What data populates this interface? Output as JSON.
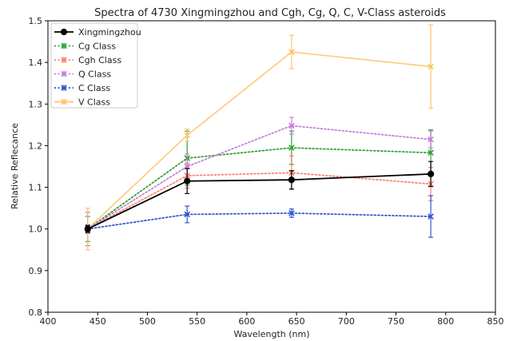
{
  "chart_data": {
    "type": "line",
    "title": "Spectra of 4730 Xingmingzhou and Cgh, Cg, Q, C, V-Class asteroids",
    "xlabel": "Wavelength (nm)",
    "ylabel": "Relative Reflecance",
    "xlim": [
      400,
      850
    ],
    "ylim": [
      0.8,
      1.5
    ],
    "xticks": [
      400,
      450,
      500,
      550,
      600,
      650,
      700,
      750,
      800,
      850
    ],
    "yticks": [
      0.8,
      0.9,
      1.0,
      1.1,
      1.2,
      1.3,
      1.4,
      1.5
    ],
    "xtick_labels": [
      "400",
      "450",
      "500",
      "550",
      "600",
      "650",
      "700",
      "750",
      "800",
      "850"
    ],
    "ytick_labels": [
      "0.8",
      "0.9",
      "1.0",
      "1.1",
      "1.2",
      "1.3",
      "1.4",
      "1.5"
    ],
    "grid": false,
    "legend_position": "top-left",
    "x": [
      440,
      540,
      645,
      785
    ],
    "series": [
      {
        "name": "Xingmingzhou",
        "color": "#000000",
        "style": "solid",
        "marker": "circle",
        "values": [
          1.0,
          1.115,
          1.118,
          1.132
        ],
        "errors": [
          0.008,
          0.03,
          0.022,
          0.03
        ]
      },
      {
        "name": "Cg Class",
        "color": "#2ca02c",
        "style": "dotted",
        "marker": "x",
        "values": [
          1.0,
          1.17,
          1.195,
          1.183
        ],
        "errors": [
          0.03,
          0.065,
          0.04,
          0.055
        ]
      },
      {
        "name": "Cgh Class",
        "color": "#ff7f6e",
        "style": "dotted",
        "marker": "x",
        "values": [
          1.0,
          1.128,
          1.135,
          1.108
        ],
        "errors": [
          0.04,
          0.03,
          0.04,
          0.04
        ]
      },
      {
        "name": "Q Class",
        "color": "#c77cdc",
        "style": "dotted",
        "marker": "x",
        "values": [
          1.0,
          1.15,
          1.248,
          1.215
        ],
        "errors": [
          0.04,
          0.03,
          0.02,
          0.02
        ]
      },
      {
        "name": "C Class",
        "color": "#3050d0",
        "style": "dotted",
        "marker": "x",
        "values": [
          1.0,
          1.035,
          1.038,
          1.03
        ],
        "errors": [
          0.01,
          0.02,
          0.01,
          0.05
        ]
      },
      {
        "name": "V Class",
        "color": "#ffc266",
        "style": "solid",
        "marker": "x",
        "values": [
          1.0,
          1.225,
          1.425,
          1.39
        ],
        "errors": [
          0.05,
          0.015,
          0.04,
          0.1
        ]
      }
    ]
  }
}
